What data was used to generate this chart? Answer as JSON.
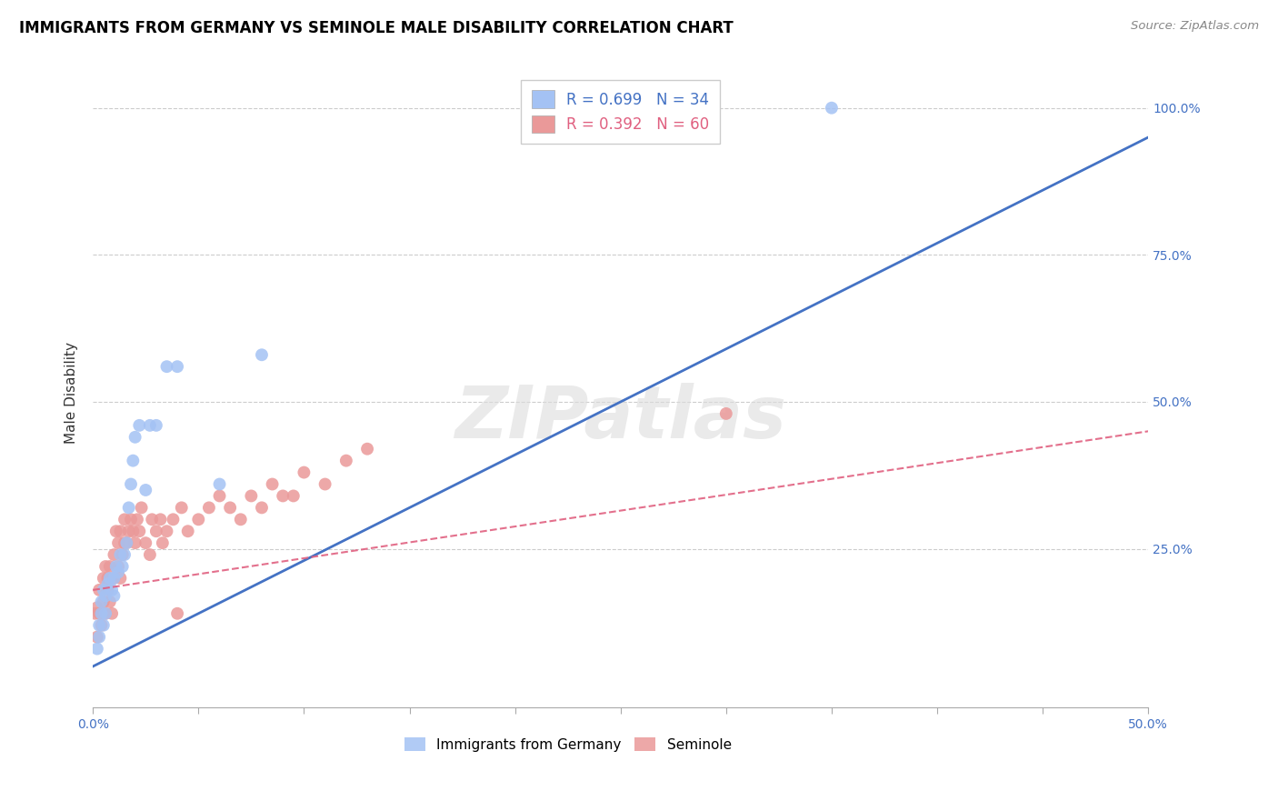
{
  "title": "IMMIGRANTS FROM GERMANY VS SEMINOLE MALE DISABILITY CORRELATION CHART",
  "source": "Source: ZipAtlas.com",
  "ylabel": "Male Disability",
  "xlim": [
    0.0,
    50.0
  ],
  "ylim": [
    -2.0,
    105.0
  ],
  "xticks": [
    0.0,
    5.0,
    10.0,
    15.0,
    20.0,
    25.0,
    30.0,
    35.0,
    40.0,
    45.0,
    50.0
  ],
  "xticklabels": [
    "0.0%",
    "",
    "",
    "",
    "",
    "",
    "",
    "",
    "",
    "",
    "50.0%"
  ],
  "yticks": [
    0.0,
    25.0,
    50.0,
    75.0,
    100.0
  ],
  "yticklabels": [
    "",
    "25.0%",
    "50.0%",
    "75.0%",
    "100.0%"
  ],
  "blue_color": "#a4c2f4",
  "pink_color": "#ea9999",
  "line_blue": "#4472c4",
  "line_pink": "#e06080",
  "watermark": "ZIPatlas",
  "germany_scatter_x": [
    0.2,
    0.3,
    0.3,
    0.4,
    0.4,
    0.5,
    0.5,
    0.6,
    0.6,
    0.7,
    0.8,
    0.9,
    1.0,
    1.0,
    1.1,
    1.2,
    1.3,
    1.4,
    1.5,
    1.6,
    1.7,
    1.8,
    1.9,
    2.0,
    2.2,
    2.5,
    2.7,
    3.0,
    3.5,
    4.0,
    6.0,
    8.0,
    35.0
  ],
  "germany_scatter_y": [
    8.0,
    10.0,
    12.0,
    14.0,
    16.0,
    12.0,
    18.0,
    14.0,
    17.0,
    19.0,
    20.0,
    18.0,
    17.0,
    20.0,
    22.0,
    21.0,
    24.0,
    22.0,
    24.0,
    26.0,
    32.0,
    36.0,
    40.0,
    44.0,
    46.0,
    35.0,
    46.0,
    46.0,
    56.0,
    56.0,
    36.0,
    58.0,
    100.0
  ],
  "seminole_scatter_x": [
    0.1,
    0.2,
    0.2,
    0.3,
    0.3,
    0.4,
    0.5,
    0.5,
    0.6,
    0.6,
    0.7,
    0.7,
    0.8,
    0.8,
    0.9,
    1.0,
    1.0,
    1.1,
    1.2,
    1.2,
    1.3,
    1.3,
    1.4,
    1.5,
    1.5,
    1.6,
    1.7,
    1.8,
    1.9,
    2.0,
    2.1,
    2.2,
    2.3,
    2.5,
    2.7,
    2.8,
    3.0,
    3.2,
    3.3,
    3.5,
    3.8,
    4.0,
    4.2,
    4.5,
    5.0,
    5.5,
    6.0,
    6.5,
    7.0,
    7.5,
    8.0,
    8.5,
    9.0,
    9.5,
    10.0,
    11.0,
    12.0,
    13.0,
    30.0
  ],
  "seminole_scatter_y": [
    14.0,
    10.0,
    15.0,
    14.0,
    18.0,
    12.0,
    20.0,
    16.0,
    22.0,
    14.0,
    18.0,
    20.0,
    16.0,
    22.0,
    14.0,
    24.0,
    20.0,
    28.0,
    22.0,
    26.0,
    20.0,
    28.0,
    24.0,
    26.0,
    30.0,
    26.0,
    28.0,
    30.0,
    28.0,
    26.0,
    30.0,
    28.0,
    32.0,
    26.0,
    24.0,
    30.0,
    28.0,
    30.0,
    26.0,
    28.0,
    30.0,
    14.0,
    32.0,
    28.0,
    30.0,
    32.0,
    34.0,
    32.0,
    30.0,
    34.0,
    32.0,
    36.0,
    34.0,
    34.0,
    38.0,
    36.0,
    40.0,
    42.0,
    48.0
  ],
  "germany_line_x": [
    0.0,
    50.0
  ],
  "germany_line_y": [
    5.0,
    95.0
  ],
  "seminole_line_x": [
    0.0,
    50.0
  ],
  "seminole_line_y": [
    18.0,
    45.0
  ]
}
